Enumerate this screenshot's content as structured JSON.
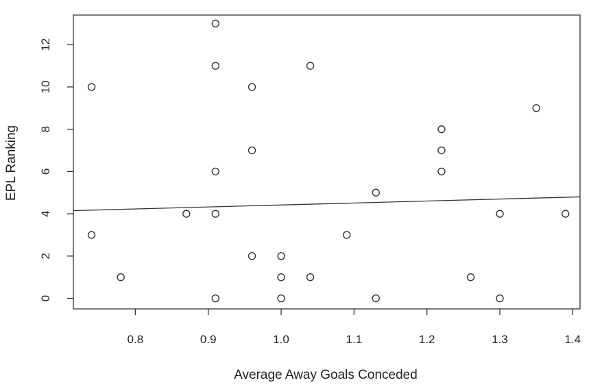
{
  "chart_data": {
    "type": "scatter",
    "title": "",
    "xlabel": "Average Away Goals Conceded",
    "ylabel": "EPL Ranking",
    "xlim": [
      0.715,
      1.41
    ],
    "ylim": [
      -0.5,
      13.4
    ],
    "x_ticks": [
      0.8,
      0.9,
      1.0,
      1.1,
      1.2,
      1.3,
      1.4
    ],
    "x_tick_labels": [
      "0.8",
      "0.9",
      "1.0",
      "1.1",
      "1.2",
      "1.3",
      "1.4"
    ],
    "y_ticks": [
      0,
      2,
      4,
      6,
      8,
      10,
      12
    ],
    "y_tick_labels": [
      "0",
      "2",
      "4",
      "6",
      "8",
      "10",
      "12"
    ],
    "grid": false,
    "points": [
      {
        "x": 0.74,
        "y": 10
      },
      {
        "x": 0.74,
        "y": 3
      },
      {
        "x": 0.78,
        "y": 1
      },
      {
        "x": 0.87,
        "y": 4
      },
      {
        "x": 0.91,
        "y": 13
      },
      {
        "x": 0.91,
        "y": 11
      },
      {
        "x": 0.91,
        "y": 6
      },
      {
        "x": 0.91,
        "y": 4
      },
      {
        "x": 0.91,
        "y": 0
      },
      {
        "x": 0.96,
        "y": 10
      },
      {
        "x": 0.96,
        "y": 7
      },
      {
        "x": 0.96,
        "y": 2
      },
      {
        "x": 1.0,
        "y": 2
      },
      {
        "x": 1.0,
        "y": 1
      },
      {
        "x": 1.0,
        "y": 0
      },
      {
        "x": 1.04,
        "y": 11
      },
      {
        "x": 1.04,
        "y": 1
      },
      {
        "x": 1.09,
        "y": 3
      },
      {
        "x": 1.13,
        "y": 5
      },
      {
        "x": 1.13,
        "y": 0
      },
      {
        "x": 1.22,
        "y": 8
      },
      {
        "x": 1.22,
        "y": 7
      },
      {
        "x": 1.22,
        "y": 6
      },
      {
        "x": 1.26,
        "y": 1
      },
      {
        "x": 1.3,
        "y": 4
      },
      {
        "x": 1.3,
        "y": 0
      },
      {
        "x": 1.35,
        "y": 9
      },
      {
        "x": 1.39,
        "y": 4
      }
    ],
    "trend_line": {
      "x": [
        0.715,
        1.41
      ],
      "y": [
        4.15,
        4.8
      ]
    }
  }
}
